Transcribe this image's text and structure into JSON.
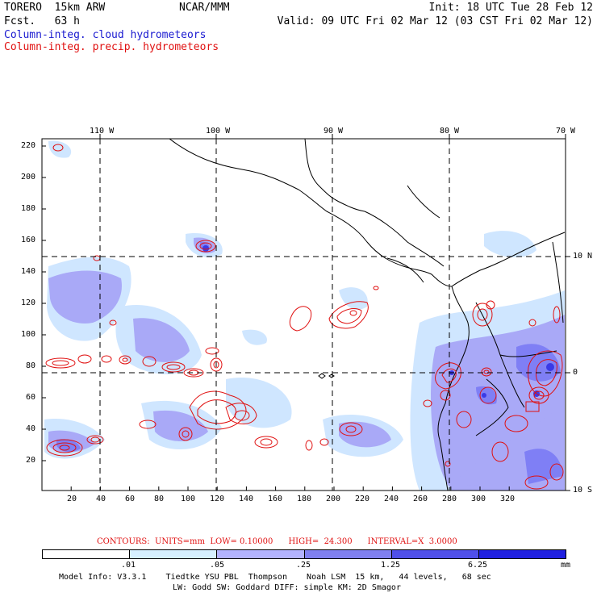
{
  "header": {
    "model": "TORERO  15km ARW",
    "forecast": "Fcst.   63 h",
    "center": "NCAR/MMM",
    "init": "Init: 18 UTC Tue 28 Feb 12",
    "valid": "Valid: 09 UTC Fri 02 Mar 12 (03 CST Fri 02 Mar 12)",
    "field1": "Column-integ. cloud hydrometeors",
    "field2": "Column-integ. precip. hydrometeors"
  },
  "map": {
    "lon_labels": [
      "110 W",
      "100 W",
      "90 W",
      "80 W",
      "70 W"
    ],
    "lat_labels": [
      "10 N",
      "0",
      "10 S"
    ],
    "x_ticks": [
      "20",
      "40",
      "60",
      "80",
      "100",
      "120",
      "140",
      "160",
      "180",
      "200",
      "220",
      "240",
      "260",
      "280",
      "300",
      "320"
    ],
    "y_ticks": [
      "220",
      "200",
      "180",
      "160",
      "140",
      "120",
      "100",
      "80",
      "60",
      "40",
      "20"
    ],
    "colors": {
      "light": "#cfe6ff",
      "mid": "#b3b3ff",
      "strong": "#7f7ff5",
      "deep": "#4040e8",
      "contour": "#e01010"
    }
  },
  "contours_info": {
    "label": "CONTOURS:  UNITS=mm  LOW= 0.10000      HIGH=  24.300      INTERVAL=X  3.0000"
  },
  "colorbar": {
    "labels": [
      ".01",
      ".05",
      ".25",
      "1.25",
      "6.25"
    ],
    "unit": "mm",
    "colors": [
      "#ffffff",
      "#d6f0ff",
      "#b3b3ff",
      "#8080f0",
      "#5050ea",
      "#2020e0"
    ]
  },
  "footer": {
    "line1": "Model Info: V3.3.1    Tiedtke YSU PBL  Thompson    Noah LSM  15 km,   44 levels,   68 sec",
    "line2": "LW: Godd SW: Goddard DIFF: simple KM: 2D Smagor"
  }
}
